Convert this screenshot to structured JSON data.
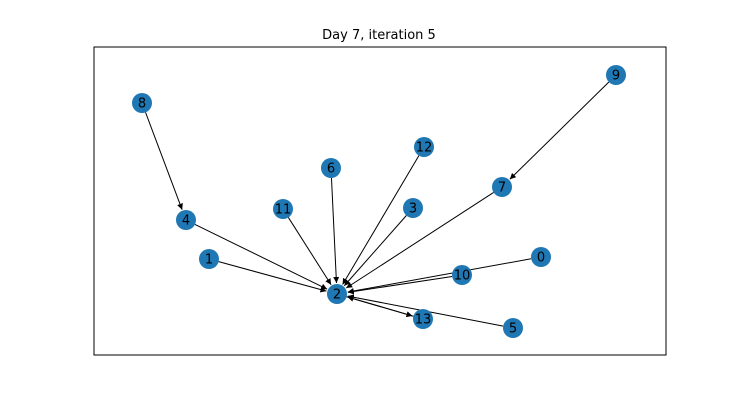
{
  "title": "Day 7, iteration 5",
  "node_color": "#1f77b4",
  "edge_color": "#000000",
  "frame_color": "#000000",
  "graph": {
    "nodes": [
      "0",
      "1",
      "2",
      "3",
      "4",
      "5",
      "6",
      "7",
      "8",
      "9",
      "10",
      "11",
      "12",
      "13"
    ],
    "edges": [
      [
        "8",
        "4"
      ],
      [
        "4",
        "2"
      ],
      [
        "1",
        "2"
      ],
      [
        "11",
        "2"
      ],
      [
        "6",
        "2"
      ],
      [
        "12",
        "2"
      ],
      [
        "3",
        "2"
      ],
      [
        "7",
        "2"
      ],
      [
        "9",
        "7"
      ],
      [
        "0",
        "2"
      ],
      [
        "10",
        "2"
      ],
      [
        "5",
        "2"
      ],
      [
        "2",
        "13"
      ],
      [
        "13",
        "2"
      ]
    ]
  }
}
